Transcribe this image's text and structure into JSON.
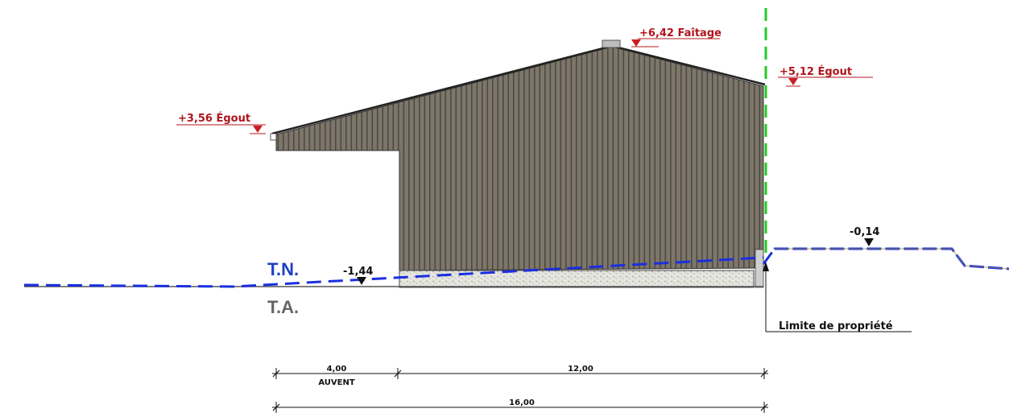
{
  "levels": {
    "faitage": "+6,42 Faîtage",
    "egout_right": "+5,12 Égout",
    "egout_left": "+3,56 Égout",
    "tn_left": "-1,44",
    "tn_right": "-0,14"
  },
  "ground_labels": {
    "tn": "T.N.",
    "ta": "T.A."
  },
  "property_limit": "Limite de propriété",
  "dimensions": {
    "auvent_value": "4,00",
    "auvent_label": "AUVENT",
    "building_value": "12,00",
    "total_value": "16,00"
  },
  "colors": {
    "cladding": "#7d766a",
    "cladding_rib": "#4e4941",
    "level_red": "#b0141c",
    "tn_blue": "#1a2fe0",
    "tn_label_blue": "#1f3fc4",
    "ta_grey": "#666666",
    "property_green": "#22cc22"
  }
}
